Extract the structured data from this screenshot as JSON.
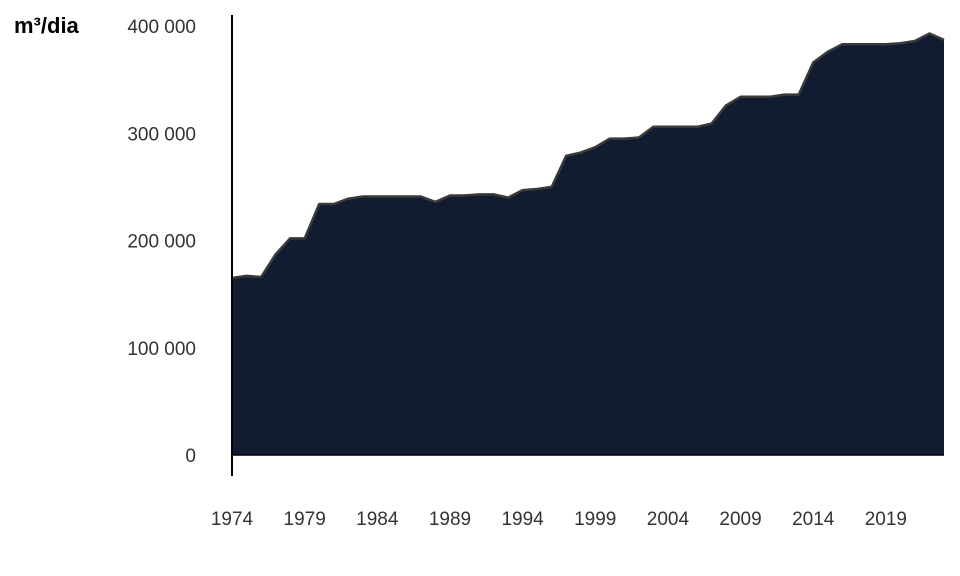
{
  "chart_data": {
    "type": "area",
    "title": "",
    "xlabel": "",
    "ylabel": "m³/dia",
    "ylim": [
      0,
      400000
    ],
    "xlim": [
      1974,
      2023
    ],
    "grid": false,
    "legend": "none",
    "y_ticks": [
      {
        "value": 0,
        "label": "0"
      },
      {
        "value": 100000,
        "label": "100 000"
      },
      {
        "value": 200000,
        "label": "200 000"
      },
      {
        "value": 300000,
        "label": "300 000"
      },
      {
        "value": 400000,
        "label": "400 000"
      }
    ],
    "x_ticks": [
      {
        "value": 1974,
        "label": "1974"
      },
      {
        "value": 1979,
        "label": "1979"
      },
      {
        "value": 1984,
        "label": "1984"
      },
      {
        "value": 1989,
        "label": "1989"
      },
      {
        "value": 1994,
        "label": "1994"
      },
      {
        "value": 1999,
        "label": "1999"
      },
      {
        "value": 2004,
        "label": "2004"
      },
      {
        "value": 2009,
        "label": "2009"
      },
      {
        "value": 2014,
        "label": "2014"
      },
      {
        "value": 2019,
        "label": "2019"
      }
    ],
    "colors": {
      "fill": "#121c30",
      "line": "#3a3a3a",
      "axis": "#000000"
    },
    "x": [
      1974,
      1975,
      1976,
      1977,
      1978,
      1979,
      1980,
      1981,
      1982,
      1983,
      1984,
      1985,
      1986,
      1987,
      1988,
      1989,
      1990,
      1991,
      1992,
      1993,
      1994,
      1995,
      1996,
      1997,
      1998,
      1999,
      2000,
      2001,
      2002,
      2003,
      2004,
      2005,
      2006,
      2007,
      2008,
      2009,
      2010,
      2011,
      2012,
      2013,
      2014,
      2015,
      2016,
      2017,
      2018,
      2019,
      2020,
      2021,
      2022,
      2023
    ],
    "series": [
      {
        "values": [
          165000,
          167000,
          166000,
          187000,
          202000,
          202000,
          234000,
          234000,
          239000,
          241000,
          241000,
          241000,
          241000,
          241000,
          236000,
          242000,
          242000,
          243000,
          243000,
          240000,
          247000,
          248000,
          250000,
          279000,
          282000,
          287000,
          295000,
          295000,
          296000,
          306000,
          306000,
          306000,
          306000,
          309000,
          326000,
          334000,
          334000,
          334000,
          336000,
          336000,
          366000,
          376000,
          383000,
          383000,
          383000,
          383000,
          384000,
          386000,
          393000,
          387000
        ]
      }
    ]
  }
}
